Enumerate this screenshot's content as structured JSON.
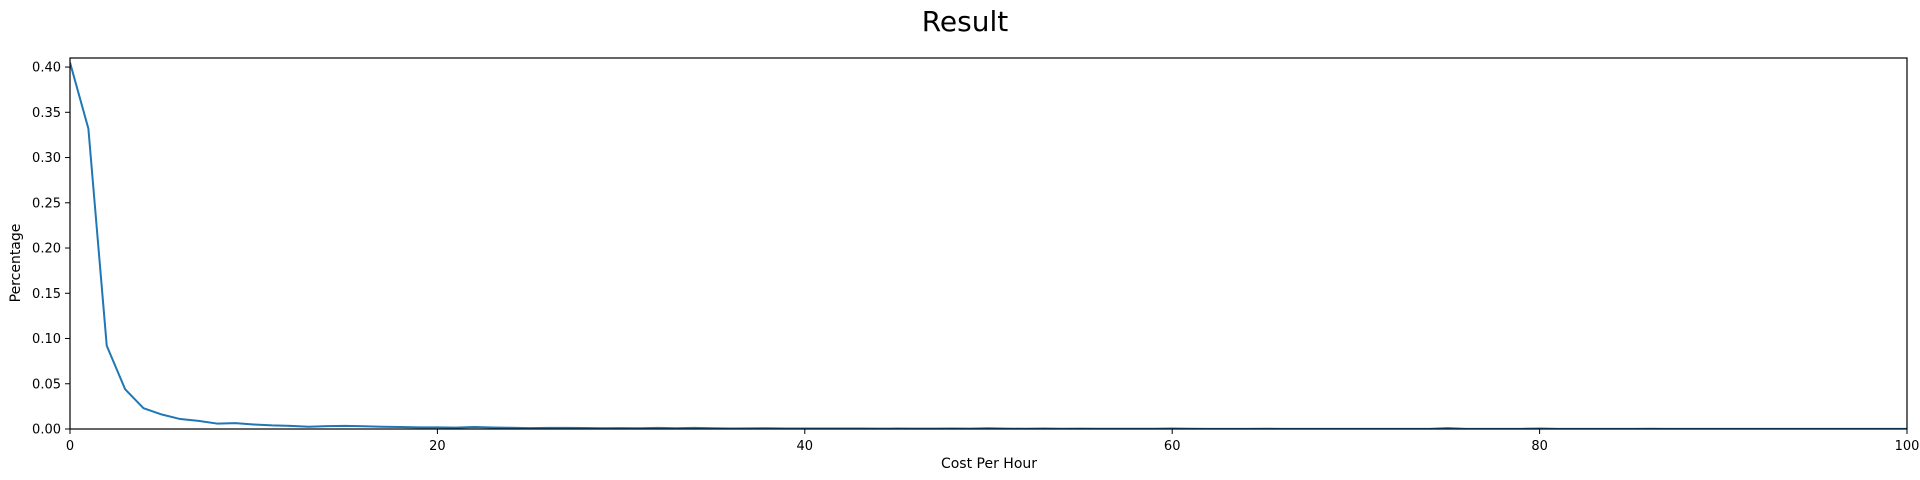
{
  "chart_data": {
    "type": "line",
    "title": "Result",
    "xlabel": "Cost Per Hour",
    "ylabel": "Percentage",
    "xlim": [
      0,
      100
    ],
    "ylim": [
      0,
      0.41
    ],
    "xticks": [
      0,
      20,
      40,
      60,
      80,
      100
    ],
    "yticks": [
      0.0,
      0.05,
      0.1,
      0.15,
      0.2,
      0.25,
      0.3,
      0.35,
      0.4
    ],
    "xtick_labels": [
      "0",
      "20",
      "40",
      "60",
      "80",
      "100"
    ],
    "ytick_labels": [
      "0.00",
      "0.05",
      "0.10",
      "0.15",
      "0.20",
      "0.25",
      "0.30",
      "0.35",
      "0.40"
    ],
    "grid": false,
    "line_color": "#1f77b4",
    "series": [
      {
        "x": [
          0,
          1,
          2,
          3,
          4,
          5,
          6,
          7,
          8,
          9,
          10,
          11,
          12,
          13,
          14,
          15,
          16,
          17,
          18,
          19,
          20,
          21,
          22,
          23,
          24,
          25,
          26,
          27,
          28,
          29,
          30,
          31,
          32,
          33,
          34,
          35,
          36,
          37,
          38,
          39,
          40,
          41,
          42,
          43,
          44,
          45,
          46,
          47,
          48,
          49,
          50,
          51,
          52,
          53,
          54,
          55,
          56,
          57,
          58,
          59,
          60,
          61,
          62,
          63,
          64,
          65,
          66,
          67,
          68,
          69,
          70,
          71,
          72,
          73,
          74,
          75,
          76,
          77,
          78,
          79,
          80,
          81,
          82,
          83,
          84,
          85,
          86,
          87,
          88,
          89,
          90,
          91,
          92,
          93,
          94,
          95,
          96,
          97,
          98,
          99,
          100
        ],
        "y": [
          0.405,
          0.332,
          0.092,
          0.044,
          0.023,
          0.016,
          0.011,
          0.009,
          0.006,
          0.0065,
          0.005,
          0.004,
          0.0035,
          0.0025,
          0.0032,
          0.0035,
          0.003,
          0.0025,
          0.0022,
          0.0018,
          0.0018,
          0.0015,
          0.0022,
          0.0016,
          0.0014,
          0.001,
          0.0012,
          0.0013,
          0.0011,
          0.0009,
          0.001,
          0.0008,
          0.0012,
          0.0009,
          0.0013,
          0.0009,
          0.0006,
          0.0007,
          0.0008,
          0.0006,
          0.0006,
          0.0005,
          0.0005,
          0.0006,
          0.0004,
          0.0005,
          0.0004,
          0.0004,
          0.0005,
          0.0004,
          0.0008,
          0.0004,
          0.0003,
          0.0006,
          0.0003,
          0.0004,
          0.0003,
          0.0003,
          0.0003,
          0.0003,
          0.0005,
          0.0003,
          0.0002,
          0.0002,
          0.0002,
          0.0003,
          0.0002,
          0.0002,
          0.0002,
          0.0002,
          0.0002,
          0.0002,
          0.0002,
          0.0002,
          0.0002,
          0.001,
          0.0002,
          0.0002,
          0.0002,
          0.0002,
          0.0005,
          0.0002,
          0.0002,
          0.0002,
          0.0002,
          0.0002,
          0.0003,
          0.0002,
          0.0002,
          0.0002,
          0.0002,
          0.0002,
          0.0002,
          0.0002,
          0.0002,
          0.0002,
          0.0002,
          0.0002,
          0.0002,
          0.0002,
          0.0002
        ]
      }
    ]
  }
}
